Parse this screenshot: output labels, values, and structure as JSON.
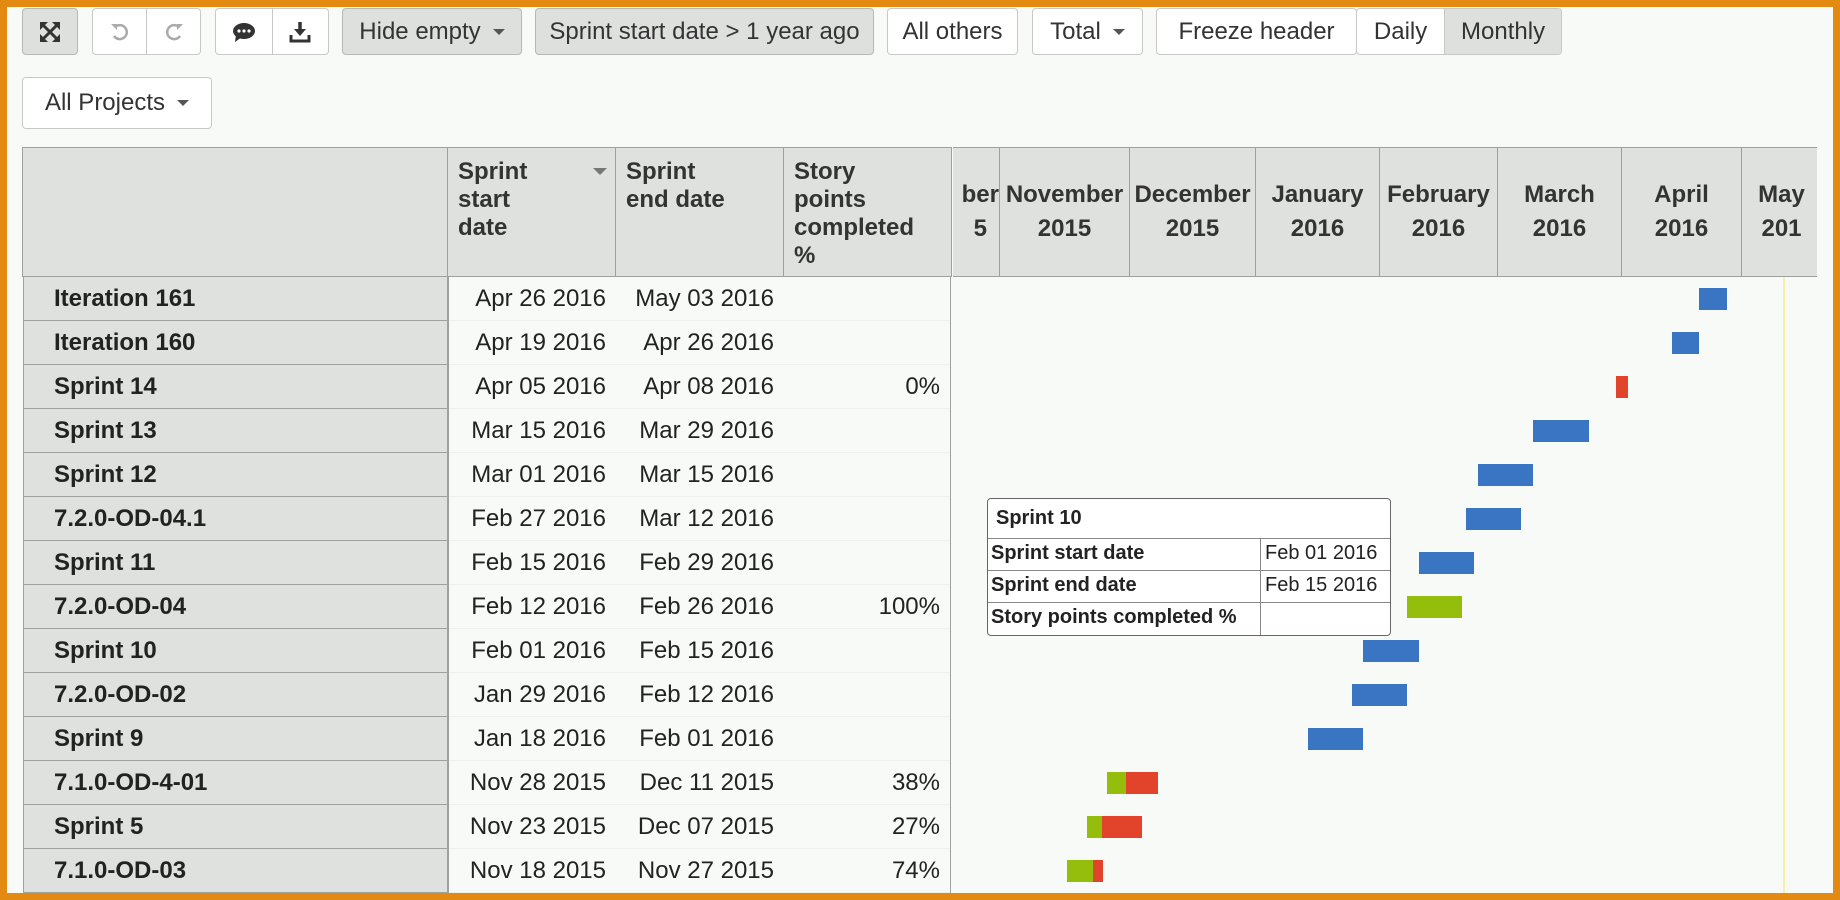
{
  "toolbar": {
    "hide_empty": "Hide empty",
    "filter": "Sprint start date > 1 year ago",
    "all_others": "All others",
    "total": "Total",
    "freeze_header": "Freeze header",
    "daily": "Daily",
    "monthly": "Monthly",
    "all_projects": "All Projects"
  },
  "headers": {
    "sprint_start": "Sprint\nstart\ndate",
    "sprint_end": "Sprint\nend date",
    "story_points": "Story\npoints\ncompleted\n%"
  },
  "months": [
    {
      "label": "ber\n5"
    },
    {
      "label": "November\n2015"
    },
    {
      "label": "December\n2015"
    },
    {
      "label": "January\n2016"
    },
    {
      "label": "February\n2016"
    },
    {
      "label": "March\n2016"
    },
    {
      "label": "April\n2016"
    },
    {
      "label": "May\n201"
    }
  ],
  "rows": [
    {
      "name": "Iteration 161",
      "start": "Apr 26 2016",
      "end": "May 03 2016",
      "pct": ""
    },
    {
      "name": "Iteration 160",
      "start": "Apr 19 2016",
      "end": "Apr 26 2016",
      "pct": ""
    },
    {
      "name": "Sprint 14",
      "start": "Apr 05 2016",
      "end": "Apr 08 2016",
      "pct": "0%"
    },
    {
      "name": "Sprint 13",
      "start": "Mar 15 2016",
      "end": "Mar 29 2016",
      "pct": ""
    },
    {
      "name": "Sprint 12",
      "start": "Mar 01 2016",
      "end": "Mar 15 2016",
      "pct": ""
    },
    {
      "name": "7.2.0-OD-04.1",
      "start": "Feb 27 2016",
      "end": "Mar 12 2016",
      "pct": ""
    },
    {
      "name": "Sprint 11",
      "start": "Feb 15 2016",
      "end": "Feb 29 2016",
      "pct": ""
    },
    {
      "name": "7.2.0-OD-04",
      "start": "Feb 12 2016",
      "end": "Feb 26 2016",
      "pct": "100%"
    },
    {
      "name": "Sprint 10",
      "start": "Feb 01 2016",
      "end": "Feb 15 2016",
      "pct": ""
    },
    {
      "name": "7.2.0-OD-02",
      "start": "Jan 29 2016",
      "end": "Feb 12 2016",
      "pct": ""
    },
    {
      "name": "Sprint 9",
      "start": "Jan 18 2016",
      "end": "Feb 01 2016",
      "pct": ""
    },
    {
      "name": "7.1.0-OD-4-01",
      "start": "Nov 28 2015",
      "end": "Dec 11 2015",
      "pct": "38%"
    },
    {
      "name": "Sprint 5",
      "start": "Nov 23 2015",
      "end": "Dec 07 2015",
      "pct": "27%"
    },
    {
      "name": "7.1.0-OD-03",
      "start": "Nov 18 2015",
      "end": "Nov 27 2015",
      "pct": "74%"
    }
  ],
  "tooltip": {
    "title": "Sprint 10",
    "rows": [
      {
        "key": "Sprint start date",
        "value": "Feb 01 2016"
      },
      {
        "key": "Sprint end date",
        "value": "Feb 15 2016"
      },
      {
        "key": "Story points completed %",
        "value": ""
      }
    ]
  },
  "colors": {
    "bar_blue": "#3a75c4",
    "bar_green": "#95bd0c",
    "bar_red": "#e1432b",
    "frame": "#e28a12"
  },
  "icons": {
    "fullscreen": "expand-arrows-icon",
    "undo": "undo-icon",
    "redo": "redo-icon",
    "comment": "comment-icon",
    "download": "download-icon"
  }
}
